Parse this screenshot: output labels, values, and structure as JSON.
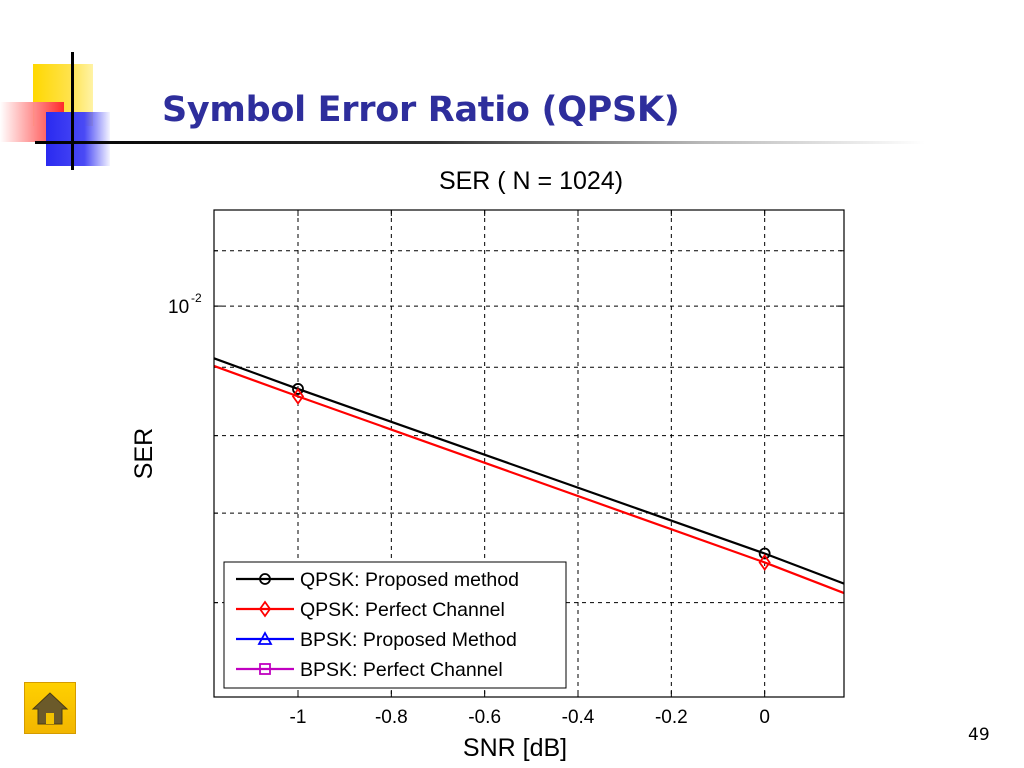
{
  "slide": {
    "title": "Symbol Error Ratio (QPSK)",
    "page_number": "49",
    "accent_title_color": "#2e2e9c"
  },
  "home_button": {
    "icon": "home-icon",
    "color": "#ffd000"
  },
  "chart_data": {
    "type": "line",
    "title": "SER ( N = 1024)",
    "xlabel": "SNR [dB]",
    "ylabel": "SER",
    "xlim": [
      -1.18,
      0.17
    ],
    "ylim": [
      0.0051,
      0.0118
    ],
    "yscale": "log",
    "grid": true,
    "legend_position": "bottom-left",
    "x_ticks": [
      -1,
      -0.8,
      -0.6,
      -0.4,
      -0.2,
      0
    ],
    "x_tick_labels": [
      "-1",
      "-0.8",
      "-0.6",
      "-0.4",
      "-0.2",
      "0"
    ],
    "y_tick_labels": [
      {
        "base": "10",
        "exponent": "-2"
      }
    ],
    "series": [
      {
        "name": "QPSK: Proposed method",
        "color": "#000000",
        "marker": "circle",
        "x": [
          -1.18,
          -1,
          0,
          0.17
        ],
        "y": [
          0.00914,
          0.00867,
          0.00653,
          0.0062
        ],
        "marker_x": [
          -1,
          0
        ]
      },
      {
        "name": "QPSK: Perfect Channel",
        "color": "#ff0000",
        "marker": "diamond",
        "x": [
          -1.18,
          -1,
          0,
          0.17
        ],
        "y": [
          0.00902,
          0.00856,
          0.00643,
          0.0061
        ],
        "marker_x": [
          -1,
          0
        ]
      },
      {
        "name": "BPSK: Proposed Method",
        "color": "#0000ff",
        "marker": "triangle",
        "x": [],
        "y": []
      },
      {
        "name": "BPSK: Perfect Channel",
        "color": "#c000c0",
        "marker": "square",
        "x": [],
        "y": []
      }
    ]
  }
}
